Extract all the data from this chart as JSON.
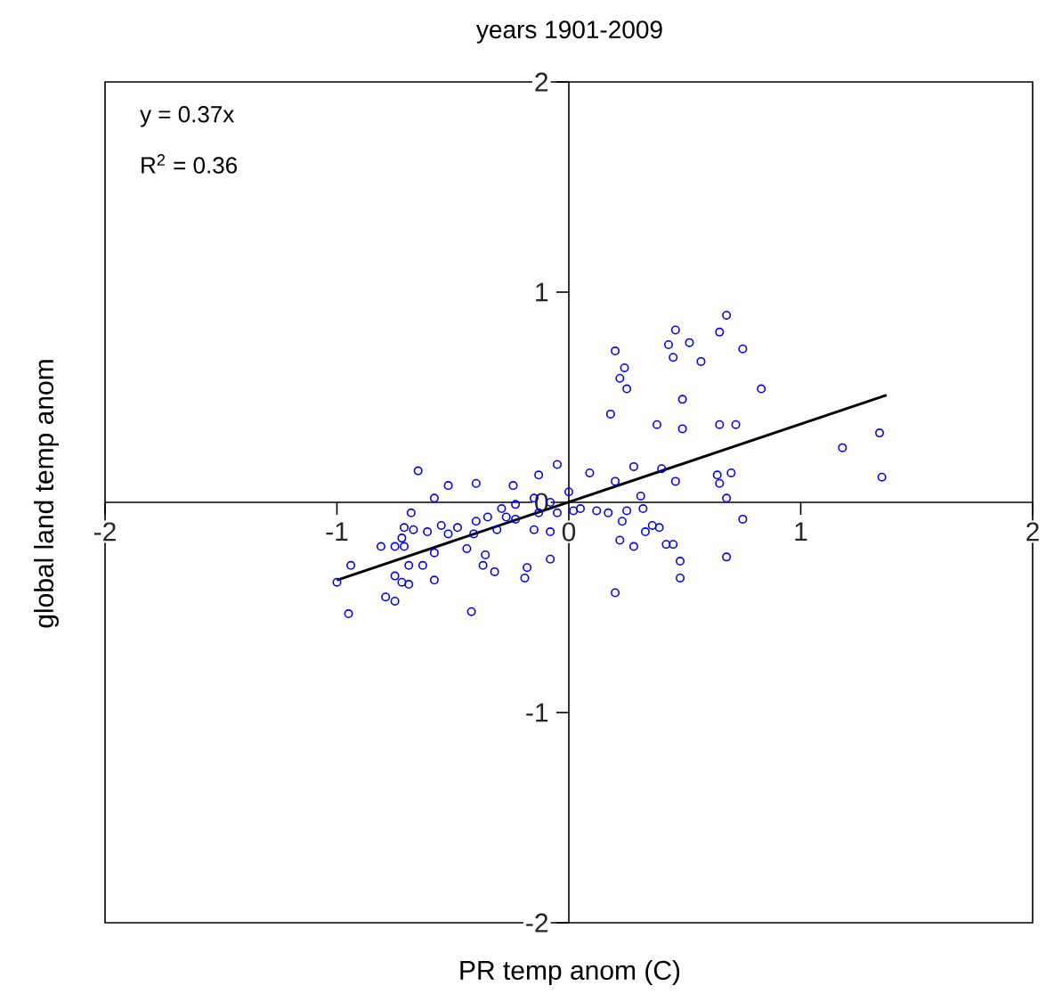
{
  "chart_data": {
    "type": "scatter",
    "title": "years 1901-2009",
    "xlabel": "PR temp anom (C)",
    "ylabel": "global land temp anom",
    "annotations": [
      "y = 0.37x",
      "R$^{2}$ = 0.36"
    ],
    "xlim": [
      -2,
      2
    ],
    "ylim": [
      -2,
      2
    ],
    "xticks": [
      -2,
      -1,
      0,
      1,
      2
    ],
    "yticks": [
      -2,
      -1,
      0,
      1,
      2
    ],
    "marker": "circle",
    "series": [
      {
        "color": "#0000ff",
        "x": [
          0.68,
          0.65,
          0.46,
          0.43,
          0.52,
          0.45,
          0.57,
          0.75,
          0.2,
          0.24,
          0.22,
          0.25,
          0.83,
          0.49,
          0.18,
          0.38,
          0.49,
          0.65,
          0.72,
          1.18,
          1.34,
          1.35,
          0.28,
          0.4,
          0.46,
          0.64,
          0.7,
          0.65,
          0.2,
          0.31,
          0.68,
          0.32,
          0.25,
          0.17,
          0.75,
          0.23,
          0.36,
          0.39,
          0.33,
          0.22,
          0.28,
          0.42,
          0.45,
          0.48,
          0.68,
          0.48,
          0.2,
          -0.65,
          -0.52,
          -0.4,
          -0.58,
          -0.24,
          -0.13,
          -0.05,
          0.09,
          -0.68,
          -0.29,
          -0.23,
          -0.15,
          -0.08,
          0.0,
          0.05,
          0.12,
          -0.71,
          -0.67,
          -0.61,
          -0.55,
          -0.48,
          -0.4,
          -0.35,
          -0.27,
          -0.23,
          -0.13,
          -0.05,
          0.02,
          -0.72,
          -0.52,
          -0.41,
          -0.31,
          -0.15,
          -0.08,
          -0.81,
          -0.75,
          -0.71,
          -0.58,
          -0.44,
          -0.36,
          -0.08,
          -0.94,
          -0.69,
          -0.63,
          -0.37,
          -0.32,
          -0.18,
          -0.75,
          -0.72,
          -0.69,
          -0.58,
          -0.19,
          -1.0,
          -0.79,
          -0.75,
          -0.95,
          -0.42
        ],
        "values": [
          0.89,
          0.81,
          0.82,
          0.75,
          0.76,
          0.69,
          0.67,
          0.73,
          0.72,
          0.64,
          0.59,
          0.54,
          0.54,
          0.49,
          0.42,
          0.37,
          0.35,
          0.37,
          0.37,
          0.26,
          0.33,
          0.12,
          0.17,
          0.16,
          0.1,
          0.13,
          0.14,
          0.09,
          0.1,
          0.03,
          0.02,
          -0.03,
          -0.04,
          -0.05,
          -0.08,
          -0.09,
          -0.11,
          -0.12,
          -0.14,
          -0.18,
          -0.21,
          -0.2,
          -0.2,
          -0.28,
          -0.26,
          -0.36,
          -0.43,
          0.15,
          0.08,
          0.09,
          0.02,
          0.08,
          0.13,
          0.18,
          0.14,
          -0.05,
          -0.03,
          -0.01,
          0.02,
          0.0,
          0.05,
          -0.03,
          -0.04,
          -0.12,
          -0.13,
          -0.14,
          -0.11,
          -0.12,
          -0.09,
          -0.07,
          -0.07,
          -0.08,
          -0.05,
          -0.05,
          -0.04,
          -0.17,
          -0.15,
          -0.15,
          -0.13,
          -0.13,
          -0.14,
          -0.21,
          -0.21,
          -0.21,
          -0.24,
          -0.22,
          -0.25,
          -0.27,
          -0.3,
          -0.3,
          -0.3,
          -0.3,
          -0.33,
          -0.31,
          -0.35,
          -0.38,
          -0.39,
          -0.37,
          -0.36,
          -0.38,
          -0.45,
          -0.47,
          -0.53,
          -0.52
        ]
      },
      {
        "type": "line",
        "color": "#000000",
        "marker": "none",
        "line_style": "solid",
        "x": [
          -1.0,
          1.37
        ],
        "values": [
          -0.37,
          0.51
        ]
      }
    ]
  }
}
